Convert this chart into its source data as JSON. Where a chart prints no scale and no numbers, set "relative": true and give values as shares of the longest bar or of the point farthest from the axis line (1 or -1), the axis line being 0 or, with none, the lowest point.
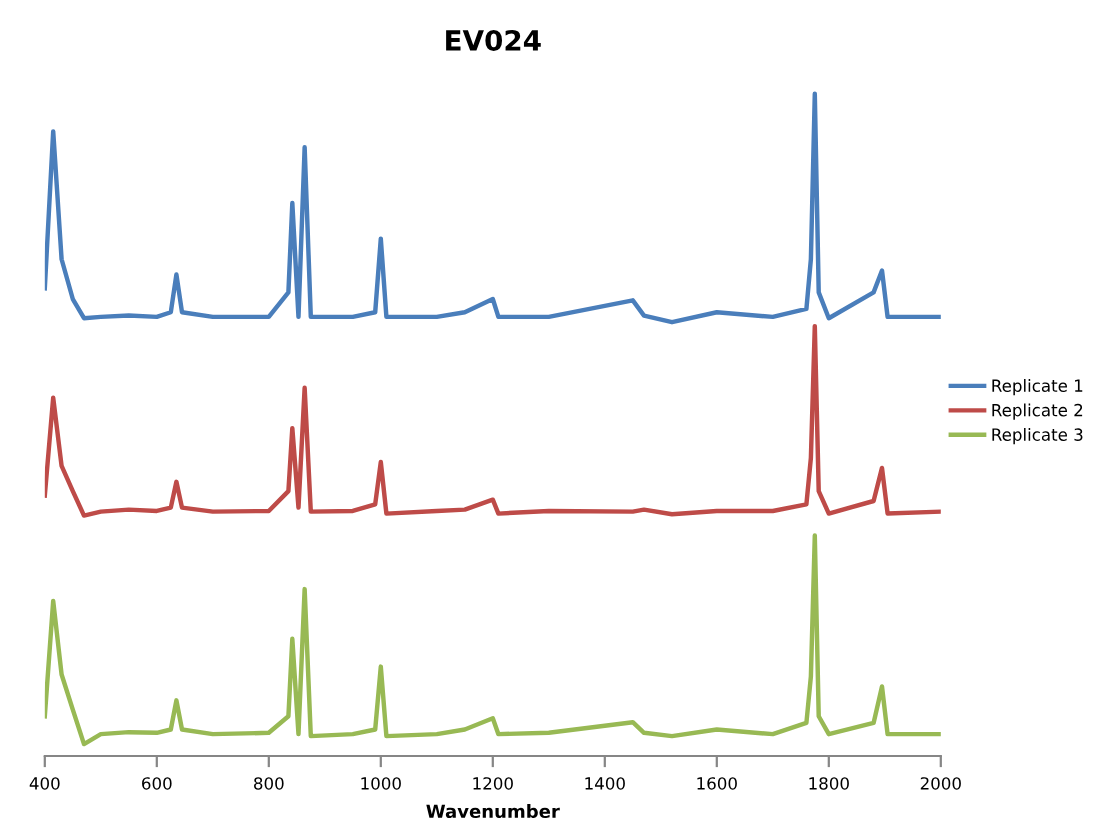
{
  "chart_data": {
    "type": "line",
    "title": "EV024",
    "xlabel": "Wavenumber",
    "relative": true,
    "xlim": [
      400,
      2000
    ],
    "xticks": [
      400,
      600,
      800,
      1000,
      1200,
      1400,
      1600,
      1800,
      2000
    ],
    "legend": "right",
    "grid": false,
    "marker": "none",
    "line_style": "solid",
    "tick_labels": "x",
    "x": [
      400,
      415,
      430,
      450,
      470,
      500,
      550,
      600,
      625,
      635,
      645,
      700,
      800,
      835,
      842,
      853,
      864,
      875,
      950,
      990,
      1000,
      1010,
      1100,
      1150,
      1200,
      1210,
      1300,
      1450,
      1470,
      1520,
      1600,
      1700,
      1760,
      1768,
      1775,
      1782,
      1800,
      1880,
      1895,
      1905,
      2000
    ],
    "series": [
      {
        "name": "Replicate 1",
        "color": "#4a7ebb",
        "values": [
          0.706,
          0.943,
          0.75,
          0.69,
          0.661,
          0.663,
          0.665,
          0.663,
          0.67,
          0.727,
          0.67,
          0.663,
          0.663,
          0.7,
          0.835,
          0.663,
          0.919,
          0.663,
          0.663,
          0.67,
          0.781,
          0.663,
          0.663,
          0.67,
          0.69,
          0.663,
          0.663,
          0.688,
          0.665,
          0.655,
          0.67,
          0.663,
          0.675,
          0.75,
          1.0,
          0.7,
          0.661,
          0.7,
          0.733,
          0.663,
          0.663
        ]
      },
      {
        "name": "Replicate 2",
        "color": "#be4b48",
        "values": [
          0.393,
          0.541,
          0.438,
          0.4,
          0.363,
          0.369,
          0.372,
          0.37,
          0.375,
          0.414,
          0.375,
          0.369,
          0.37,
          0.4,
          0.495,
          0.375,
          0.556,
          0.369,
          0.37,
          0.38,
          0.444,
          0.366,
          0.37,
          0.372,
          0.387,
          0.366,
          0.37,
          0.369,
          0.372,
          0.365,
          0.37,
          0.37,
          0.38,
          0.45,
          0.649,
          0.4,
          0.366,
          0.385,
          0.435,
          0.366,
          0.369
        ]
      },
      {
        "name": "Replicate 3",
        "color": "#98b954",
        "values": [
          0.06,
          0.234,
          0.123,
          0.07,
          0.018,
          0.033,
          0.036,
          0.035,
          0.04,
          0.084,
          0.04,
          0.033,
          0.035,
          0.06,
          0.177,
          0.033,
          0.252,
          0.03,
          0.033,
          0.04,
          0.135,
          0.03,
          0.033,
          0.04,
          0.057,
          0.033,
          0.035,
          0.051,
          0.035,
          0.03,
          0.04,
          0.033,
          0.05,
          0.12,
          0.333,
          0.06,
          0.033,
          0.05,
          0.105,
          0.033,
          0.033
        ]
      }
    ]
  }
}
